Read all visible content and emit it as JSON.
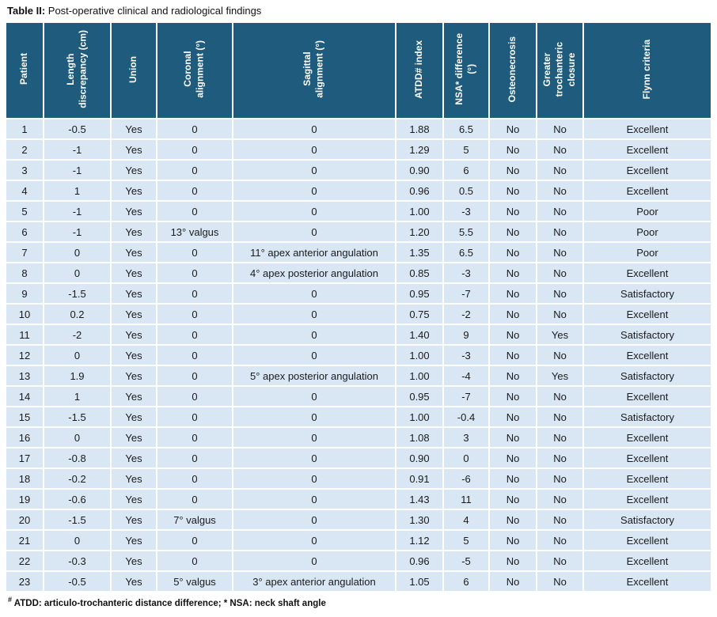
{
  "title": {
    "bold": "Table II:",
    "rest": " Post-operative clinical and radiological findings"
  },
  "colors": {
    "header_bg": "#1e5b7c",
    "header_text": "#ffffff",
    "row_bg": "#d9e7f5",
    "separator": "#ffffff",
    "body_text": "#1a1a1a"
  },
  "table": {
    "columns": [
      {
        "key": "patient",
        "label": "Patient"
      },
      {
        "key": "length",
        "label": "Length\ndiscrepancy (cm)"
      },
      {
        "key": "union",
        "label": "Union"
      },
      {
        "key": "coronal",
        "label": "Coronal\nalignment (°)"
      },
      {
        "key": "sagittal",
        "label": "Sagittal\nalignment (°)"
      },
      {
        "key": "atdd",
        "label": "ATDD# index"
      },
      {
        "key": "nsa",
        "label": "NSA* difference\n(°)"
      },
      {
        "key": "osteonecrosis",
        "label": "Osteonecrosis"
      },
      {
        "key": "trochanteric",
        "label": "Greater\ntrochanteric\nclosure"
      },
      {
        "key": "flynn",
        "label": "Flynn criteria"
      }
    ],
    "rows": [
      [
        "1",
        "-0.5",
        "Yes",
        "0",
        "0",
        "1.88",
        "6.5",
        "No",
        "No",
        "Excellent"
      ],
      [
        "2",
        "-1",
        "Yes",
        "0",
        "0",
        "1.29",
        "5",
        "No",
        "No",
        "Excellent"
      ],
      [
        "3",
        "-1",
        "Yes",
        "0",
        "0",
        "0.90",
        "6",
        "No",
        "No",
        "Excellent"
      ],
      [
        "4",
        "1",
        "Yes",
        "0",
        "0",
        "0.96",
        "0.5",
        "No",
        "No",
        "Excellent"
      ],
      [
        "5",
        "-1",
        "Yes",
        "0",
        "0",
        "1.00",
        "-3",
        "No",
        "No",
        "Poor"
      ],
      [
        "6",
        "-1",
        "Yes",
        "13° valgus",
        "0",
        "1.20",
        "5.5",
        "No",
        "No",
        "Poor"
      ],
      [
        "7",
        "0",
        "Yes",
        "0",
        "11° apex anterior angulation",
        "1.35",
        "6.5",
        "No",
        "No",
        "Poor"
      ],
      [
        "8",
        "0",
        "Yes",
        "0",
        "4° apex posterior angulation",
        "0.85",
        "-3",
        "No",
        "No",
        "Excellent"
      ],
      [
        "9",
        "-1.5",
        "Yes",
        "0",
        "0",
        "0.95",
        "-7",
        "No",
        "No",
        "Satisfactory"
      ],
      [
        "10",
        "0.2",
        "Yes",
        "0",
        "0",
        "0.75",
        "-2",
        "No",
        "No",
        "Excellent"
      ],
      [
        "11",
        "-2",
        "Yes",
        "0",
        "0",
        "1.40",
        "9",
        "No",
        "Yes",
        "Satisfactory"
      ],
      [
        "12",
        "0",
        "Yes",
        "0",
        "0",
        "1.00",
        "-3",
        "No",
        "No",
        "Excellent"
      ],
      [
        "13",
        "1.9",
        "Yes",
        "0",
        "5° apex posterior angulation",
        "1.00",
        "-4",
        "No",
        "Yes",
        "Satisfactory"
      ],
      [
        "14",
        "1",
        "Yes",
        "0",
        "0",
        "0.95",
        "-7",
        "No",
        "No",
        "Excellent"
      ],
      [
        "15",
        "-1.5",
        "Yes",
        "0",
        "0",
        "1.00",
        "-0.4",
        "No",
        "No",
        "Satisfactory"
      ],
      [
        "16",
        "0",
        "Yes",
        "0",
        "0",
        "1.08",
        "3",
        "No",
        "No",
        "Excellent"
      ],
      [
        "17",
        "-0.8",
        "Yes",
        "0",
        "0",
        "0.90",
        "0",
        "No",
        "No",
        "Excellent"
      ],
      [
        "18",
        "-0.2",
        "Yes",
        "0",
        "0",
        "0.91",
        "-6",
        "No",
        "No",
        "Excellent"
      ],
      [
        "19",
        "-0.6",
        "Yes",
        "0",
        "0",
        "1.43",
        "11",
        "No",
        "No",
        "Excellent"
      ],
      [
        "20",
        "-1.5",
        "Yes",
        "7° valgus",
        "0",
        "1.30",
        "4",
        "No",
        "No",
        "Satisfactory"
      ],
      [
        "21",
        "0",
        "Yes",
        "0",
        "0",
        "1.12",
        "5",
        "No",
        "No",
        "Excellent"
      ],
      [
        "22",
        "-0.3",
        "Yes",
        "0",
        "0",
        "0.96",
        "-5",
        "No",
        "No",
        "Excellent"
      ],
      [
        "23",
        "-0.5",
        "Yes",
        "5° valgus",
        "3° apex anterior angulation",
        "1.05",
        "6",
        "No",
        "No",
        "Excellent"
      ]
    ]
  },
  "footnote": {
    "marker": "#",
    "text": " ATDD: articulo-trochanteric distance difference; * NSA: neck shaft angle"
  }
}
